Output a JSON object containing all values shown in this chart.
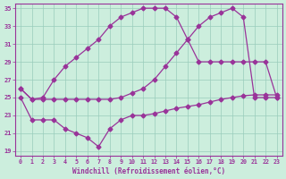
{
  "xlabel": "Windchill (Refroidissement éolien,°C)",
  "bg_color": "#cceedd",
  "line_color": "#993399",
  "grid_color": "#99ccbb",
  "xlim": [
    -0.5,
    23.5
  ],
  "ylim": [
    18.5,
    35.5
  ],
  "yticks": [
    19,
    21,
    23,
    25,
    27,
    29,
    31,
    33,
    35
  ],
  "xticks": [
    0,
    1,
    2,
    3,
    4,
    5,
    6,
    7,
    8,
    9,
    10,
    11,
    12,
    13,
    14,
    15,
    16,
    17,
    18,
    19,
    20,
    21,
    22,
    23
  ],
  "line1_x": [
    0,
    1,
    2,
    3,
    4,
    5,
    6,
    7,
    8,
    9,
    10,
    11,
    12,
    13,
    14,
    15,
    16,
    17,
    18,
    19,
    20,
    21,
    22,
    23
  ],
  "line1_y": [
    26.0,
    24.8,
    25.0,
    27.0,
    28.5,
    29.5,
    30.5,
    31.5,
    33.0,
    34.0,
    34.5,
    35.0,
    35.0,
    35.0,
    34.0,
    31.5,
    29.0,
    29.0,
    29.0,
    29.0,
    29.0,
    29.0,
    29.0,
    25.0
  ],
  "line2_x": [
    0,
    1,
    2,
    3,
    4,
    5,
    6,
    7,
    8,
    9,
    10,
    11,
    12,
    13,
    14,
    15,
    16,
    17,
    18,
    19,
    20,
    21,
    22,
    23
  ],
  "line2_y": [
    26.0,
    24.8,
    24.8,
    24.8,
    24.8,
    24.8,
    24.8,
    24.8,
    24.8,
    25.0,
    25.5,
    26.0,
    27.0,
    28.5,
    30.0,
    31.5,
    33.0,
    34.0,
    34.5,
    35.0,
    34.0,
    25.0,
    25.0,
    25.0
  ],
  "line3_x": [
    0,
    1,
    2,
    3,
    4,
    5,
    6,
    7,
    8,
    9,
    10,
    11,
    12,
    13,
    14,
    15,
    16,
    17,
    18,
    19,
    20,
    21,
    22,
    23
  ],
  "line3_y": [
    25.0,
    22.5,
    22.5,
    22.5,
    21.5,
    21.0,
    20.5,
    19.5,
    21.5,
    22.5,
    23.0,
    23.0,
    23.2,
    23.5,
    23.8,
    24.0,
    24.2,
    24.5,
    24.8,
    25.0,
    25.2,
    25.3,
    25.3,
    25.3
  ],
  "marker": "D",
  "markersize": 2.5,
  "linewidth": 0.9
}
